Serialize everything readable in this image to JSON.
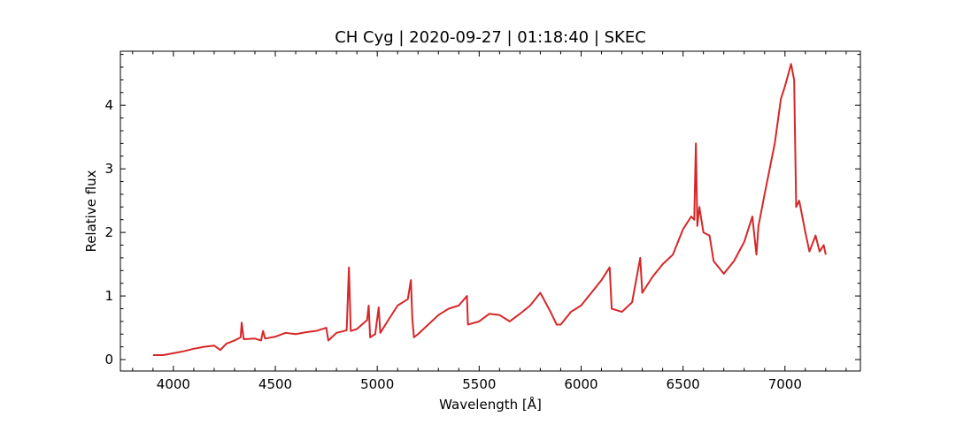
{
  "chart_data": {
    "type": "line",
    "title": "CH Cyg | 2020-09-27 | 01:18:40 | SKEC",
    "xlabel": "Wavelength [Å]",
    "ylabel": "Relative flux",
    "xlim": [
      3740,
      7370
    ],
    "ylim": [
      -0.18,
      4.85
    ],
    "x_ticks": [
      4000,
      4500,
      5000,
      5500,
      6000,
      6500,
      7000
    ],
    "x_tick_labels": [
      "4000",
      "4500",
      "5000",
      "5500",
      "6000",
      "6500",
      "7000"
    ],
    "y_ticks": [
      0,
      1,
      2,
      3,
      4
    ],
    "y_tick_labels": [
      "0",
      "1",
      "2",
      "3",
      "4"
    ],
    "x_minor_step": 100,
    "y_minor_step": 0.2,
    "grid": false,
    "series": [
      {
        "color": "#d62728",
        "points": [
          [
            3900,
            0.07
          ],
          [
            3950,
            0.07
          ],
          [
            4000,
            0.1
          ],
          [
            4050,
            0.13
          ],
          [
            4100,
            0.17
          ],
          [
            4150,
            0.2
          ],
          [
            4200,
            0.22
          ],
          [
            4230,
            0.15
          ],
          [
            4260,
            0.25
          ],
          [
            4300,
            0.3
          ],
          [
            4330,
            0.35
          ],
          [
            4335,
            0.58
          ],
          [
            4345,
            0.32
          ],
          [
            4400,
            0.33
          ],
          [
            4430,
            0.3
          ],
          [
            4440,
            0.45
          ],
          [
            4450,
            0.33
          ],
          [
            4500,
            0.36
          ],
          [
            4550,
            0.42
          ],
          [
            4600,
            0.4
          ],
          [
            4650,
            0.43
          ],
          [
            4700,
            0.45
          ],
          [
            4750,
            0.5
          ],
          [
            4760,
            0.3
          ],
          [
            4800,
            0.42
          ],
          [
            4850,
            0.46
          ],
          [
            4861,
            1.45
          ],
          [
            4870,
            0.45
          ],
          [
            4900,
            0.48
          ],
          [
            4950,
            0.62
          ],
          [
            4958,
            0.85
          ],
          [
            4965,
            0.35
          ],
          [
            4990,
            0.4
          ],
          [
            5007,
            0.82
          ],
          [
            5015,
            0.42
          ],
          [
            5050,
            0.6
          ],
          [
            5100,
            0.85
          ],
          [
            5150,
            0.95
          ],
          [
            5165,
            1.25
          ],
          [
            5172,
            0.65
          ],
          [
            5180,
            0.35
          ],
          [
            5200,
            0.4
          ],
          [
            5250,
            0.55
          ],
          [
            5300,
            0.7
          ],
          [
            5350,
            0.8
          ],
          [
            5400,
            0.85
          ],
          [
            5440,
            1.0
          ],
          [
            5445,
            0.55
          ],
          [
            5500,
            0.6
          ],
          [
            5550,
            0.72
          ],
          [
            5600,
            0.7
          ],
          [
            5650,
            0.6
          ],
          [
            5700,
            0.72
          ],
          [
            5750,
            0.85
          ],
          [
            5800,
            1.05
          ],
          [
            5850,
            0.75
          ],
          [
            5880,
            0.55
          ],
          [
            5900,
            0.55
          ],
          [
            5950,
            0.75
          ],
          [
            6000,
            0.85
          ],
          [
            6050,
            1.05
          ],
          [
            6100,
            1.25
          ],
          [
            6140,
            1.45
          ],
          [
            6150,
            0.8
          ],
          [
            6200,
            0.75
          ],
          [
            6250,
            0.9
          ],
          [
            6290,
            1.6
          ],
          [
            6300,
            1.05
          ],
          [
            6350,
            1.3
          ],
          [
            6400,
            1.5
          ],
          [
            6450,
            1.65
          ],
          [
            6500,
            2.05
          ],
          [
            6540,
            2.25
          ],
          [
            6555,
            2.2
          ],
          [
            6563,
            3.4
          ],
          [
            6570,
            2.1
          ],
          [
            6580,
            2.4
          ],
          [
            6600,
            2.0
          ],
          [
            6630,
            1.95
          ],
          [
            6650,
            1.55
          ],
          [
            6700,
            1.35
          ],
          [
            6750,
            1.55
          ],
          [
            6800,
            1.85
          ],
          [
            6840,
            2.25
          ],
          [
            6860,
            1.65
          ],
          [
            6870,
            2.1
          ],
          [
            6900,
            2.6
          ],
          [
            6950,
            3.4
          ],
          [
            6980,
            4.1
          ],
          [
            7000,
            4.3
          ],
          [
            7030,
            4.65
          ],
          [
            7045,
            4.4
          ],
          [
            7055,
            2.4
          ],
          [
            7070,
            2.5
          ],
          [
            7100,
            2.0
          ],
          [
            7120,
            1.7
          ],
          [
            7150,
            1.95
          ],
          [
            7170,
            1.7
          ],
          [
            7190,
            1.8
          ],
          [
            7200,
            1.65
          ]
        ]
      }
    ]
  }
}
